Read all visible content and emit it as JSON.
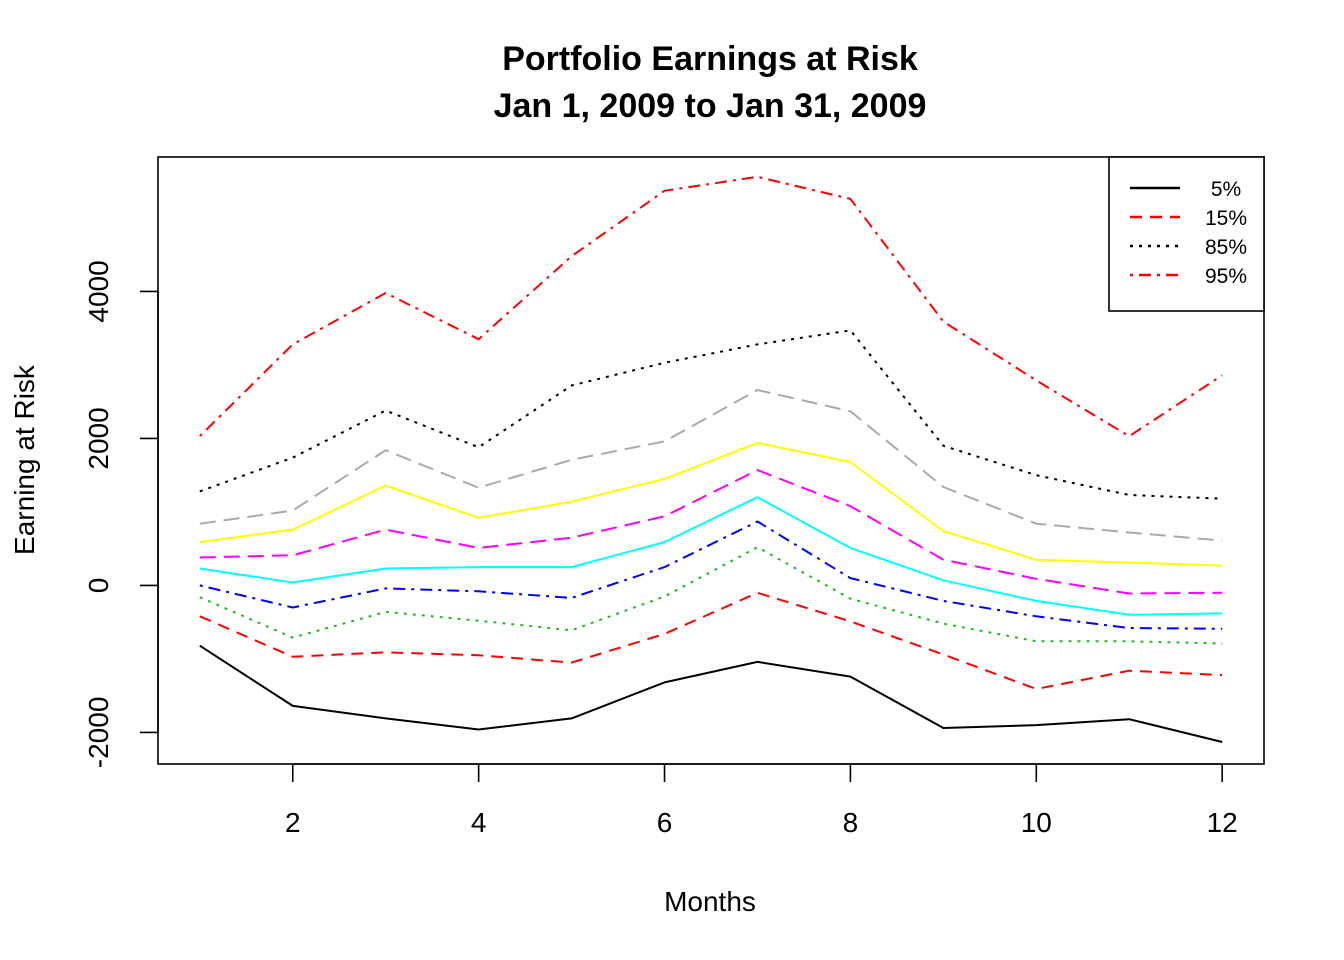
{
  "chart_data": {
    "type": "line",
    "title": [
      "Portfolio Earnings at Risk",
      "Jan 1, 2009 to Jan 31, 2009"
    ],
    "xlabel": "Months",
    "ylabel": "Earning at Risk",
    "xlim": [
      0.55,
      12.45
    ],
    "ylim": [
      -2430,
      5830
    ],
    "xticks": [
      2,
      4,
      6,
      8,
      10,
      12
    ],
    "yticks": [
      -2000,
      0,
      2000,
      4000
    ],
    "grid": false,
    "legend_position": "top-right",
    "x": [
      1,
      2,
      3,
      4,
      5,
      6,
      7,
      8,
      9,
      10,
      11,
      12
    ],
    "series": [
      {
        "name": "5%",
        "color": "#000000",
        "dash": "solid",
        "values": [
          -820,
          -1640,
          -1810,
          -1960,
          -1810,
          -1320,
          -1040,
          -1240,
          -1940,
          -1900,
          -1820,
          -2130
        ]
      },
      {
        "name": "15%",
        "color": "#FF0000",
        "dash": "dashed",
        "values": [
          -420,
          -970,
          -910,
          -950,
          -1050,
          -660,
          -100,
          -490,
          -940,
          -1410,
          -1160,
          -1220
        ]
      },
      {
        "color": "#22BB22",
        "dash": "dotted",
        "values": [
          -160,
          -710,
          -360,
          -480,
          -610,
          -150,
          520,
          -180,
          -520,
          -760,
          -760,
          -790
        ]
      },
      {
        "color": "#0000FF",
        "dash": "dotdash",
        "values": [
          0,
          -300,
          -40,
          -80,
          -170,
          250,
          870,
          100,
          -210,
          -420,
          -580,
          -590
        ]
      },
      {
        "color": "#00FFFF",
        "dash": "solid",
        "values": [
          230,
          40,
          230,
          250,
          250,
          590,
          1200,
          510,
          70,
          -210,
          -400,
          -380
        ]
      },
      {
        "color": "#FF00FF",
        "dash": "longdash",
        "values": [
          380,
          410,
          760,
          510,
          650,
          940,
          1570,
          1080,
          350,
          90,
          -110,
          -100
        ]
      },
      {
        "color": "#FFFF00",
        "dash": "solid",
        "values": [
          590,
          760,
          1360,
          920,
          1140,
          1450,
          1940,
          1680,
          740,
          350,
          310,
          270
        ]
      },
      {
        "color": "#AAAAAA",
        "dash": "longdash",
        "values": [
          840,
          1020,
          1840,
          1330,
          1710,
          1960,
          2660,
          2370,
          1340,
          840,
          720,
          610
        ]
      },
      {
        "name": "85%",
        "color": "#000000",
        "dash": "dotted",
        "values": [
          1280,
          1740,
          2380,
          1880,
          2720,
          3030,
          3280,
          3470,
          1900,
          1500,
          1230,
          1180
        ]
      },
      {
        "name": "95%",
        "color": "#FF0000",
        "dash": "dotdash",
        "values": [
          2030,
          3280,
          3980,
          3350,
          4480,
          5370,
          5560,
          5260,
          3590,
          2790,
          2030,
          2860
        ]
      }
    ],
    "legend": [
      "5%",
      "15%",
      "85%",
      "95%"
    ]
  }
}
